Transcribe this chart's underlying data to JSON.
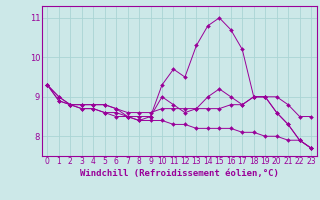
{
  "x_labels": [
    0,
    1,
    2,
    3,
    4,
    5,
    6,
    7,
    8,
    9,
    10,
    11,
    12,
    13,
    14,
    15,
    16,
    17,
    18,
    19,
    20,
    21,
    22,
    23
  ],
  "series": [
    [
      9.3,
      9.0,
      8.8,
      8.8,
      8.8,
      8.8,
      8.7,
      8.5,
      8.5,
      8.5,
      9.3,
      9.7,
      9.5,
      10.3,
      10.8,
      11.0,
      10.7,
      10.2,
      9.0,
      9.0,
      8.6,
      8.3,
      7.9,
      7.7
    ],
    [
      9.3,
      9.0,
      8.8,
      8.8,
      8.8,
      8.8,
      8.7,
      8.6,
      8.6,
      8.6,
      8.7,
      8.7,
      8.7,
      8.7,
      8.7,
      8.7,
      8.8,
      8.8,
      9.0,
      9.0,
      9.0,
      8.8,
      8.5,
      8.5
    ],
    [
      9.3,
      8.9,
      8.8,
      8.7,
      8.7,
      8.6,
      8.6,
      8.5,
      8.4,
      8.4,
      8.4,
      8.3,
      8.3,
      8.2,
      8.2,
      8.2,
      8.2,
      8.1,
      8.1,
      8.0,
      8.0,
      7.9,
      7.9,
      7.7
    ],
    [
      9.3,
      8.9,
      8.8,
      8.7,
      8.7,
      8.6,
      8.5,
      8.5,
      8.4,
      8.5,
      9.0,
      8.8,
      8.6,
      8.7,
      9.0,
      9.2,
      9.0,
      8.8,
      9.0,
      9.0,
      8.6,
      8.3,
      7.9,
      7.7
    ]
  ],
  "line_color": "#990099",
  "marker": "D",
  "marker_size": 2,
  "bg_color": "#cce8e8",
  "grid_color": "#aad4d4",
  "xlabel": "Windchill (Refroidissement éolien,°C)",
  "ylim": [
    7.5,
    11.3
  ],
  "yticks": [
    8,
    9,
    10,
    11
  ],
  "xlim": [
    -0.5,
    23.5
  ],
  "label_fontsize": 6.5,
  "tick_fontsize": 5.5
}
